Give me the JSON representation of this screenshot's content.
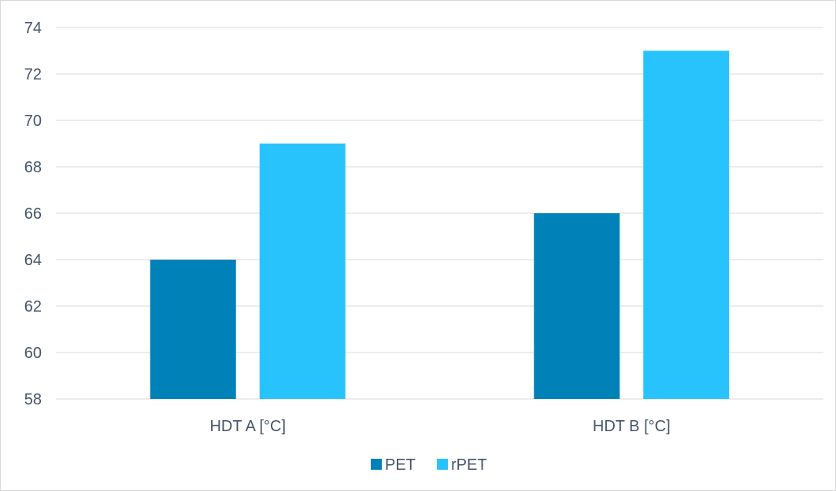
{
  "chart_data": {
    "type": "bar",
    "title": "",
    "xlabel": "",
    "ylabel": "",
    "categories": [
      "HDT A [°C]",
      "HDT B [°C]"
    ],
    "series": [
      {
        "name": "PET",
        "values": [
          64,
          66
        ],
        "color": "#0081b8"
      },
      {
        "name": "rPET",
        "values": [
          69,
          73
        ],
        "color": "#28c3fd"
      }
    ],
    "ylim": [
      58,
      74
    ],
    "yticks": [
      58,
      60,
      62,
      64,
      66,
      68,
      70,
      72,
      74
    ],
    "grid": true,
    "legend": "bottom-center"
  },
  "colors": {
    "gridline": "#d9d9d9",
    "text": "#44546a",
    "frame": "#d9d9d9"
  }
}
